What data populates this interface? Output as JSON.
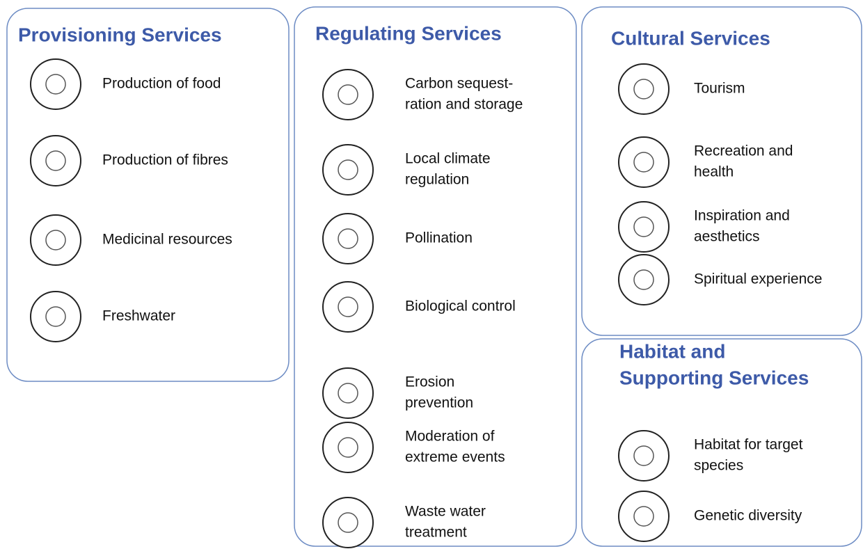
{
  "panels": [
    {
      "title": [
        "Provisioning Services"
      ],
      "items": [
        {
          "lines": [
            "Production of food"
          ]
        },
        {
          "lines": [
            "Production of fibres"
          ]
        },
        {
          "lines": [
            "Medicinal resources"
          ]
        },
        {
          "lines": [
            "Freshwater"
          ]
        }
      ]
    },
    {
      "title": [
        "Regulating Services"
      ],
      "items": [
        {
          "lines": [
            "Carbon sequest-",
            "ration and storage"
          ]
        },
        {
          "lines": [
            "Local climate",
            "regulation"
          ]
        },
        {
          "lines": [
            "Pollination"
          ]
        },
        {
          "lines": [
            "Biological control"
          ]
        },
        {
          "lines": [
            "Erosion",
            "prevention"
          ]
        },
        {
          "lines": [
            "Moderation of",
            "extreme events"
          ]
        },
        {
          "lines": [
            "Waste water",
            "treatment"
          ]
        }
      ]
    },
    {
      "title": [
        "Cultural Services"
      ],
      "items": [
        {
          "lines": [
            "Tourism"
          ]
        },
        {
          "lines": [
            "Recreation and",
            "health"
          ]
        },
        {
          "lines": [
            "Inspiration and",
            "aesthetics"
          ]
        },
        {
          "lines": [
            "Spiritual experience"
          ]
        }
      ]
    },
    {
      "title": [
        "Habitat and",
        "Supporting Services"
      ],
      "items": [
        {
          "lines": [
            "Habitat for target",
            "species"
          ]
        },
        {
          "lines": [
            "Genetic diversity"
          ]
        }
      ]
    }
  ]
}
